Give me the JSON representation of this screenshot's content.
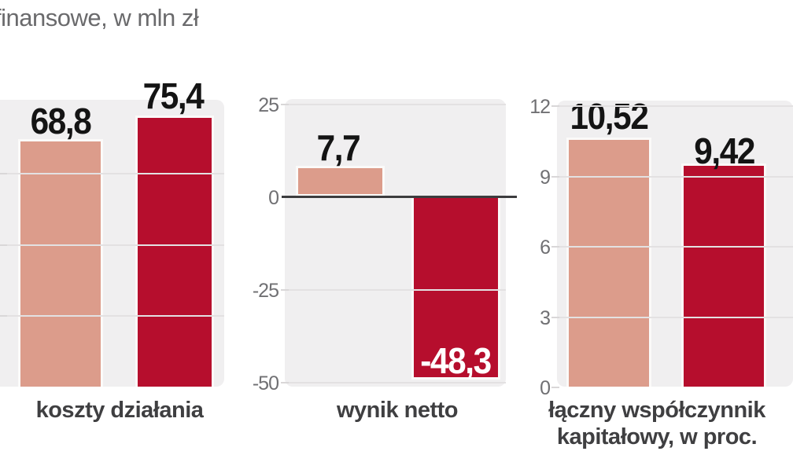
{
  "title": {
    "visible_text": "finansowe, w mln zł",
    "note_units_left_panels": "w mln zł",
    "note_units_right_panel": "w proc."
  },
  "colors": {
    "bar_series_1": "#dc9c8b",
    "bar_series_2": "#b60e2d",
    "plot_background": "#f0eff0",
    "gridline": "#e3e1e2",
    "zero_axis": "#3c3c3e",
    "axis_label": "#707073",
    "value_label": "#141414",
    "value_label_inside": "#ffffff",
    "category_label": "#3f3f41",
    "title_text": "#6a6a6c",
    "bar_border": "#fbfaf9"
  },
  "chart_data": [
    {
      "type": "bar",
      "category": "koszty działania",
      "values": [
        68.8,
        75.4
      ],
      "value_labels": [
        "68,8",
        "75,4"
      ],
      "bar_colors": [
        "#dc9c8b",
        "#b60e2d"
      ],
      "ylim": [
        0,
        80
      ],
      "gridline_values": [
        20,
        40,
        60
      ],
      "ytick_labels": [],
      "yaxis_labels_visible": false,
      "grid": true,
      "legend": "none"
    },
    {
      "type": "bar",
      "category": "wynik netto",
      "values": [
        7.7,
        -48.3
      ],
      "value_labels": [
        "7,7",
        "-48,3"
      ],
      "bar_colors": [
        "#dc9c8b",
        "#b60e2d"
      ],
      "ylim": [
        -50,
        25
      ],
      "gridline_values": [
        25,
        -25,
        -50
      ],
      "ytick_values": [
        25,
        0,
        -25,
        -50
      ],
      "ytick_labels": [
        "25",
        "0",
        "-25",
        "-50"
      ],
      "zero_axis_line": true,
      "grid": true,
      "legend": "none"
    },
    {
      "type": "bar",
      "category": "łączny współczynnik kapitałowy, w proc.",
      "category_lines": [
        "łączny współczynnik",
        "kapitałowy, w proc."
      ],
      "values": [
        10.52,
        9.42
      ],
      "value_labels": [
        "10,52",
        "9,42"
      ],
      "bar_colors": [
        "#dc9c8b",
        "#b60e2d"
      ],
      "ylim": [
        0,
        12
      ],
      "gridline_values": [
        3,
        6,
        9,
        12
      ],
      "ytick_values": [
        12,
        9,
        6,
        3,
        0
      ],
      "ytick_labels": [
        "12",
        "9",
        "6",
        "3",
        "0"
      ],
      "grid": true,
      "legend": "none"
    }
  ]
}
